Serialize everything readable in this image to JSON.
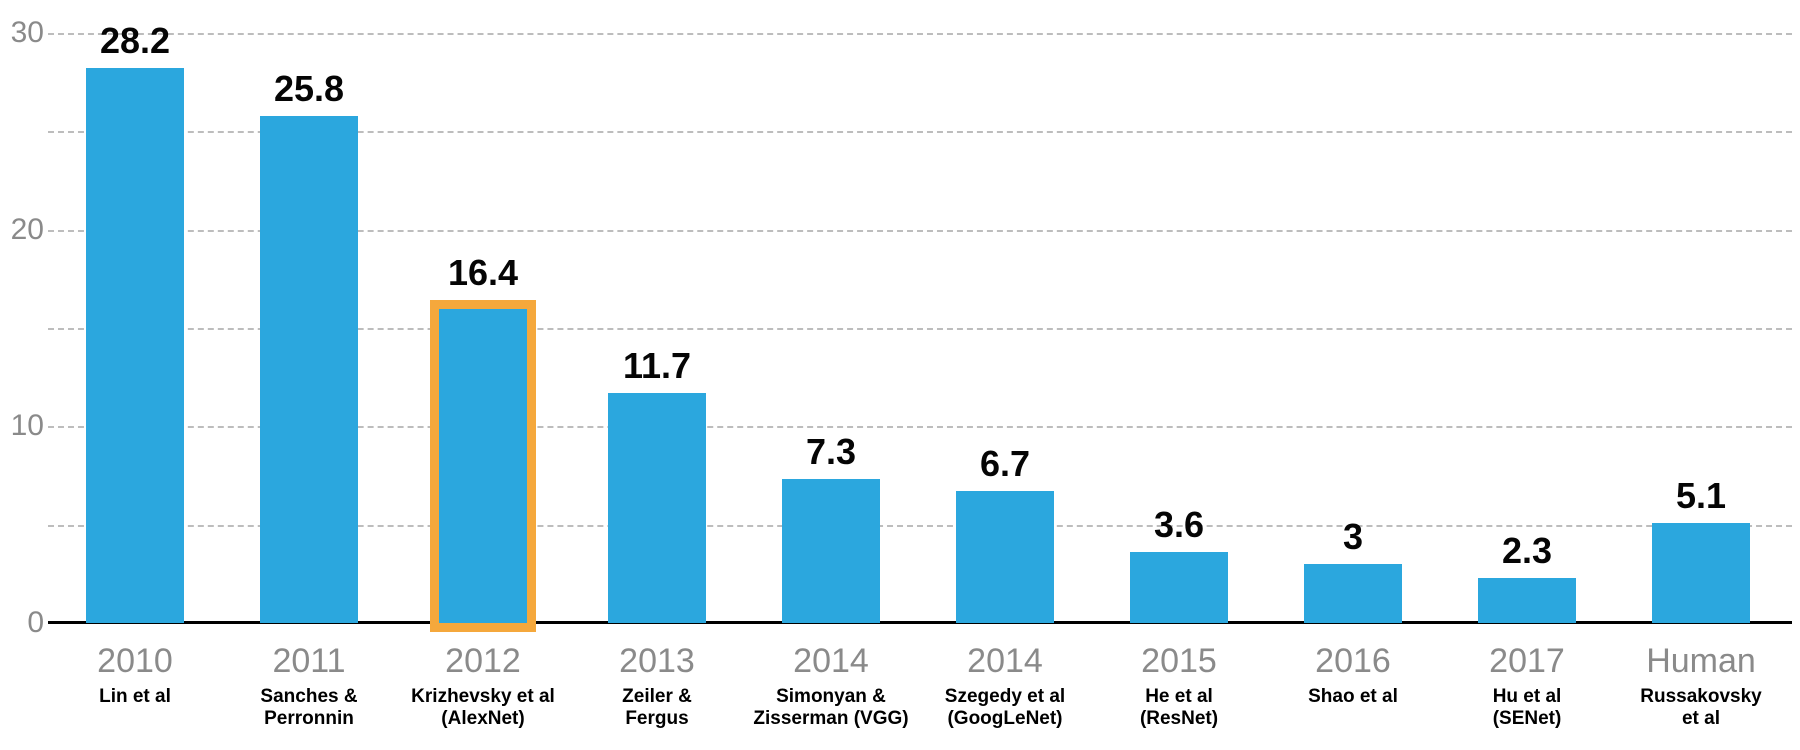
{
  "page": {
    "background": "#ffffff"
  },
  "chart_data": {
    "type": "bar",
    "title": "",
    "xlabel": "",
    "ylabel": "",
    "y_axis": {
      "min": 0,
      "max": 30,
      "tick_values": [
        30,
        20,
        10,
        0
      ],
      "tick_labels": [
        "30",
        "20",
        "10",
        "0"
      ],
      "gridline_values": [
        5,
        10,
        15,
        20,
        25,
        30
      ],
      "gridline_style": "dashed",
      "grid": true
    },
    "legend": null,
    "categories": [
      "2010",
      "2011",
      "2012",
      "2013",
      "2014",
      "2014",
      "2015",
      "2016",
      "2017",
      "Human"
    ],
    "values": [
      28.2,
      25.8,
      16.4,
      11.7,
      7.3,
      6.7,
      3.6,
      3,
      2.3,
      5.1
    ],
    "bars": [
      {
        "year": "2010",
        "authors": [
          "Lin et al"
        ],
        "value": 28.2,
        "value_label": "28.2",
        "highlighted": false
      },
      {
        "year": "2011",
        "authors": [
          "Sanches &",
          "Perronnin"
        ],
        "value": 25.8,
        "value_label": "25.8",
        "highlighted": false
      },
      {
        "year": "2012",
        "authors": [
          "Krizhevsky et al",
          "(AlexNet)"
        ],
        "value": 16.4,
        "value_label": "16.4",
        "highlighted": true
      },
      {
        "year": "2013",
        "authors": [
          "Zeiler &",
          "Fergus"
        ],
        "value": 11.7,
        "value_label": "11.7",
        "highlighted": false
      },
      {
        "year": "2014",
        "authors": [
          "Simonyan &",
          "Zisserman (VGG)"
        ],
        "value": 7.3,
        "value_label": "7.3",
        "highlighted": false
      },
      {
        "year": "2014",
        "authors": [
          "Szegedy et al",
          "(GoogLeNet)"
        ],
        "value": 6.7,
        "value_label": "6.7",
        "highlighted": false
      },
      {
        "year": "2015",
        "authors": [
          "He et al",
          "(ResNet)"
        ],
        "value": 3.6,
        "value_label": "3.6",
        "highlighted": false
      },
      {
        "year": "2016",
        "authors": [
          "Shao et al"
        ],
        "value": 3,
        "value_label": "3",
        "highlighted": false
      },
      {
        "year": "2017",
        "authors": [
          "Hu et al",
          "(SENet)"
        ],
        "value": 2.3,
        "value_label": "2.3",
        "highlighted": false
      },
      {
        "year": "Human",
        "authors": [
          "Russakovsky",
          "et al"
        ],
        "value": 5.1,
        "value_label": "5.1",
        "highlighted": false
      }
    ],
    "colors": {
      "bar_fill": "#2BA7DE",
      "highlight_border": "#F5A83C",
      "gridline": "#BDBDBD",
      "axis_line": "#000000",
      "year_label": "#8A8A8A",
      "author_label": "#000000",
      "value_label": "#050505"
    }
  }
}
